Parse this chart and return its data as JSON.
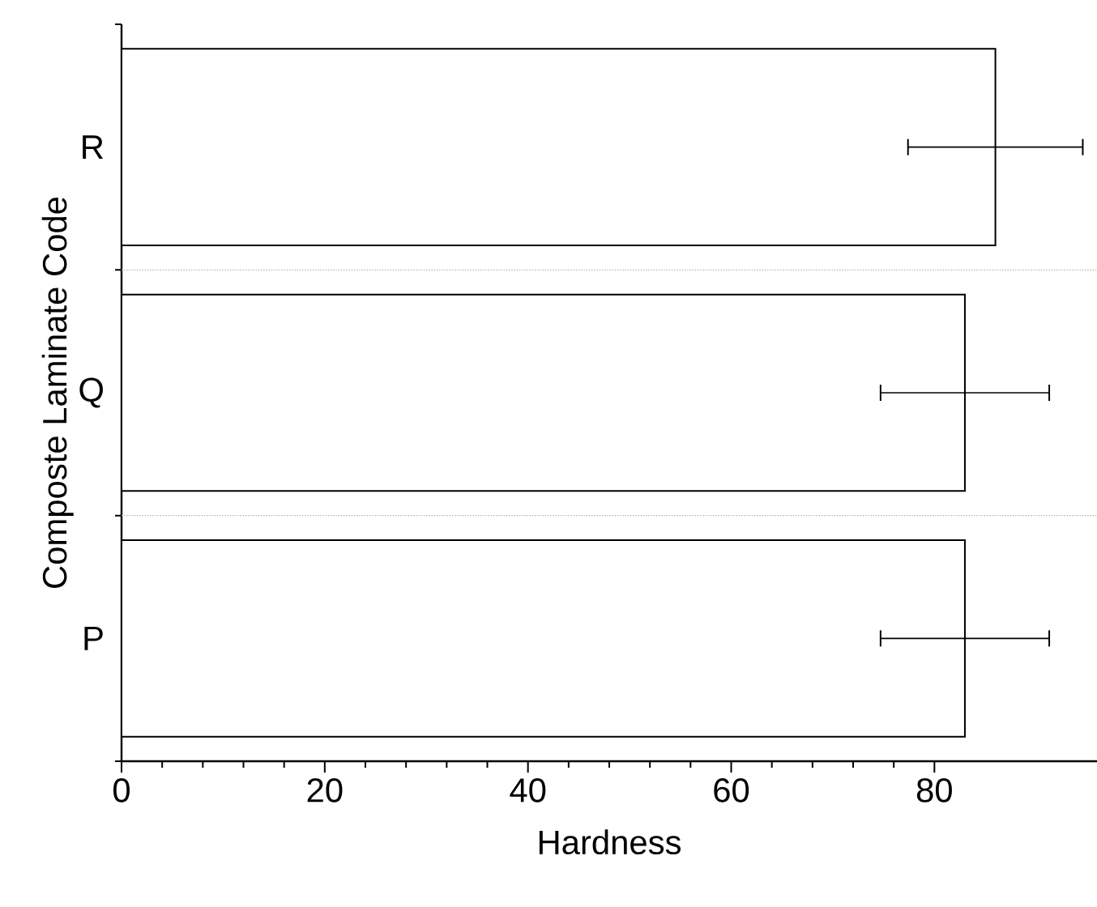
{
  "chart_data": {
    "type": "bar",
    "orientation": "horizontal",
    "xlabel": "Hardness",
    "ylabel": "Composte Laminate Code",
    "categories": [
      "R",
      "Q",
      "P"
    ],
    "values": [
      86,
      83,
      83
    ],
    "errors": [
      8.6,
      8.3,
      8.3
    ],
    "color": "#000000",
    "xlim": [
      0,
      96
    ],
    "xticks": [
      0,
      20,
      40,
      60,
      80
    ],
    "grid": "y"
  }
}
